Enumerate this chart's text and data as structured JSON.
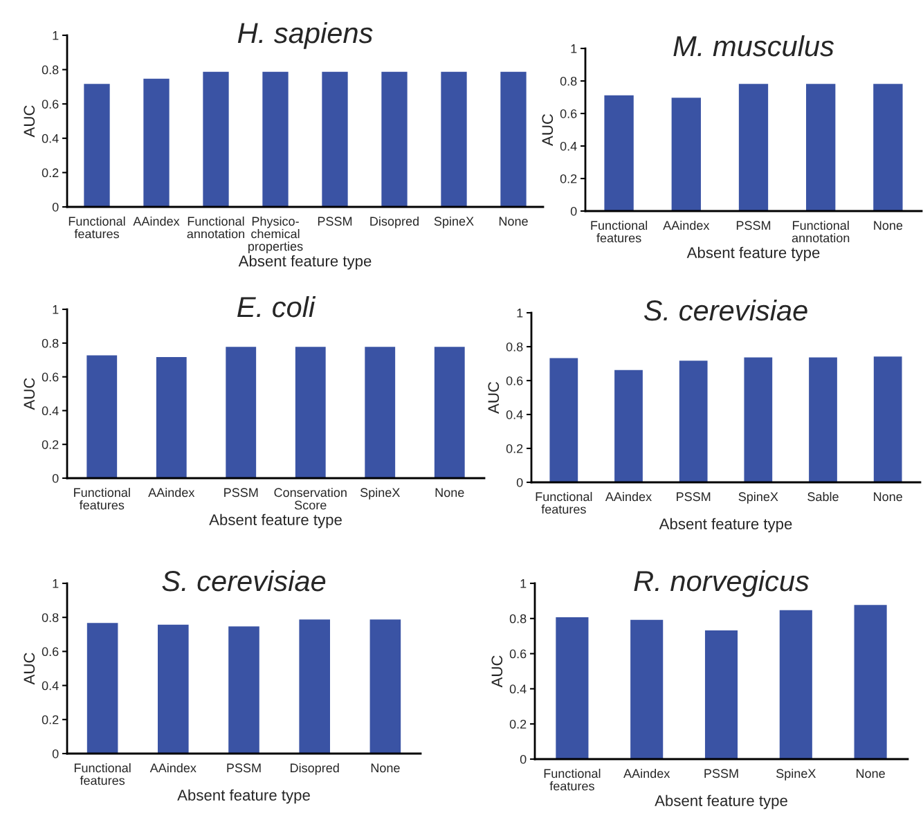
{
  "chart_data": [
    {
      "type": "bar",
      "title": "H. sapiens",
      "xlabel": "Absent feature type",
      "ylabel": "AUC",
      "categories": [
        "Functional\nfeatures",
        "AAindex",
        "Functional\nannotation",
        "Physico-\nchemical\nproperties",
        "PSSM",
        "Disopred",
        "SpineX",
        "None"
      ],
      "values": [
        0.72,
        0.75,
        0.79,
        0.79,
        0.79,
        0.79,
        0.79,
        0.79
      ],
      "color": "#3a53a4",
      "ylim": [
        0,
        1
      ],
      "yticks": [
        0,
        0.2,
        0.4,
        0.6,
        0.8,
        1
      ]
    },
    {
      "type": "bar",
      "title": "M. musculus",
      "xlabel": "Absent feature type",
      "ylabel": "AUC",
      "categories": [
        "Functional\nfeatures",
        "AAindex",
        "PSSM",
        "Functional\nannotation",
        "None"
      ],
      "values": [
        0.715,
        0.7,
        0.785,
        0.785,
        0.785
      ],
      "color": "#3a53a4",
      "ylim": [
        0,
        1
      ],
      "yticks": [
        0,
        0.2,
        0.4,
        0.6,
        0.8,
        1
      ]
    },
    {
      "type": "bar",
      "title": "E. coli",
      "xlabel": "Absent feature type",
      "ylabel": "AUC",
      "categories": [
        "Functional\nfeatures",
        "AAindex",
        "PSSM",
        "Conservation\nScore",
        "SpineX",
        "None"
      ],
      "values": [
        0.73,
        0.72,
        0.78,
        0.78,
        0.78,
        0.78
      ],
      "color": "#3a53a4",
      "ylim": [
        0,
        1
      ],
      "yticks": [
        0,
        0.2,
        0.4,
        0.6,
        0.8,
        1
      ]
    },
    {
      "type": "bar",
      "title": "S. cerevisiae",
      "xlabel": "Absent feature type",
      "ylabel": "AUC",
      "categories": [
        "Functional\nfeatures",
        "AAindex",
        "PSSM",
        "SpineX",
        "Sable",
        "None"
      ],
      "values": [
        0.735,
        0.665,
        0.72,
        0.74,
        0.74,
        0.745
      ],
      "color": "#3a53a4",
      "ylim": [
        0,
        1
      ],
      "yticks": [
        0,
        0.2,
        0.4,
        0.6,
        0.8,
        1
      ]
    },
    {
      "type": "bar",
      "title": "S. cerevisiae",
      "xlabel": "Absent feature type",
      "ylabel": "AUC",
      "categories": [
        "Functional\nfeatures",
        "AAindex",
        "PSSM",
        "Disopred",
        "None"
      ],
      "values": [
        0.77,
        0.76,
        0.75,
        0.79,
        0.79
      ],
      "color": "#3a53a4",
      "ylim": [
        0,
        1
      ],
      "yticks": [
        0,
        0.2,
        0.4,
        0.6,
        0.8,
        1
      ]
    },
    {
      "type": "bar",
      "title": "R. norvegicus",
      "xlabel": "Absent feature type",
      "ylabel": "AUC",
      "categories": [
        "Functional\nfeatures",
        "AAindex",
        "PSSM",
        "SpineX",
        "None"
      ],
      "values": [
        0.81,
        0.795,
        0.735,
        0.85,
        0.88
      ],
      "color": "#3a53a4",
      "ylim": [
        0,
        1
      ],
      "yticks": [
        0,
        0.2,
        0.4,
        0.6,
        0.8,
        1
      ]
    }
  ]
}
